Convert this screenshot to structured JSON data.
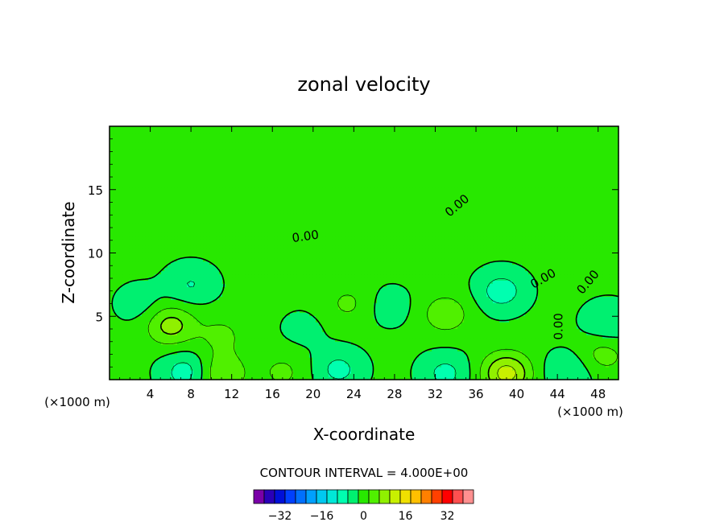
{
  "chart_data": {
    "type": "heatmap",
    "title": "zonal velocity",
    "xlabel": "X-coordinate",
    "ylabel": "Z-coordinate",
    "x_unit_left": "(×1000 m)",
    "x_unit_right": "(×1000 m)",
    "xlim": [
      0,
      50
    ],
    "ylim": [
      0,
      20
    ],
    "x_ticks": [
      4,
      8,
      12,
      16,
      20,
      24,
      28,
      32,
      36,
      40,
      44,
      48
    ],
    "y_ticks": [
      5,
      10,
      15
    ],
    "contour_interval_text": "CONTOUR INTERVAL = 4.000E+00",
    "contour_labels": [
      "0.00",
      "0.00",
      "0.00",
      "0.00",
      "0.00"
    ],
    "colorbar": {
      "min": -40,
      "max": 40,
      "step": 4,
      "tick_values": [
        -32,
        -16,
        0,
        16,
        32
      ],
      "tick_labels": [
        "−32",
        "−16",
        "0",
        "16",
        "32"
      ],
      "colors": [
        "#7a00a8",
        "#2a00b8",
        "#0010d8",
        "#0040ff",
        "#0070ff",
        "#00a0ff",
        "#00c8f0",
        "#00e8d8",
        "#00ffb0",
        "#00f070",
        "#28e800",
        "#50f000",
        "#90f000",
        "#c8f000",
        "#f0e000",
        "#ffc000",
        "#ff8000",
        "#ff4000",
        "#ff0000",
        "#ff5050",
        "#ff9090"
      ]
    },
    "features": [
      {
        "x": 0.0,
        "z": 20.0,
        "u": 0.0
      },
      {
        "x": 8.0,
        "z": 7.5,
        "u": -5.0
      },
      {
        "x": 6.0,
        "z": 4.3,
        "u": 9.0
      },
      {
        "x": 11.0,
        "z": 3.5,
        "u": 4.0
      },
      {
        "x": 7.5,
        "z": 0.6,
        "u": -7.0
      },
      {
        "x": 11.0,
        "z": 0.5,
        "u": 7.0
      },
      {
        "x": 3.0,
        "z": 6.0,
        "u": -3.0
      },
      {
        "x": 19.0,
        "z": 4.0,
        "u": -2.0
      },
      {
        "x": 23.5,
        "z": 6.0,
        "u": 4.0
      },
      {
        "x": 22.5,
        "z": 0.8,
        "u": -6.0
      },
      {
        "x": 27.5,
        "z": 5.8,
        "u": -3.0
      },
      {
        "x": 33.0,
        "z": 5.2,
        "u": 6.0
      },
      {
        "x": 33.0,
        "z": 0.5,
        "u": -6.0
      },
      {
        "x": 38.5,
        "z": 7.0,
        "u": -7.0
      },
      {
        "x": 39.0,
        "z": 0.5,
        "u": 13.0
      },
      {
        "x": 45.0,
        "z": 0.6,
        "u": -5.0
      },
      {
        "x": 49.0,
        "z": 4.5,
        "u": -5.0
      },
      {
        "x": 48.5,
        "z": 2.0,
        "u": 5.0
      },
      {
        "x": 17.0,
        "z": 0.6,
        "u": 4.0
      }
    ],
    "grid": false,
    "legend": "bottom-center"
  }
}
